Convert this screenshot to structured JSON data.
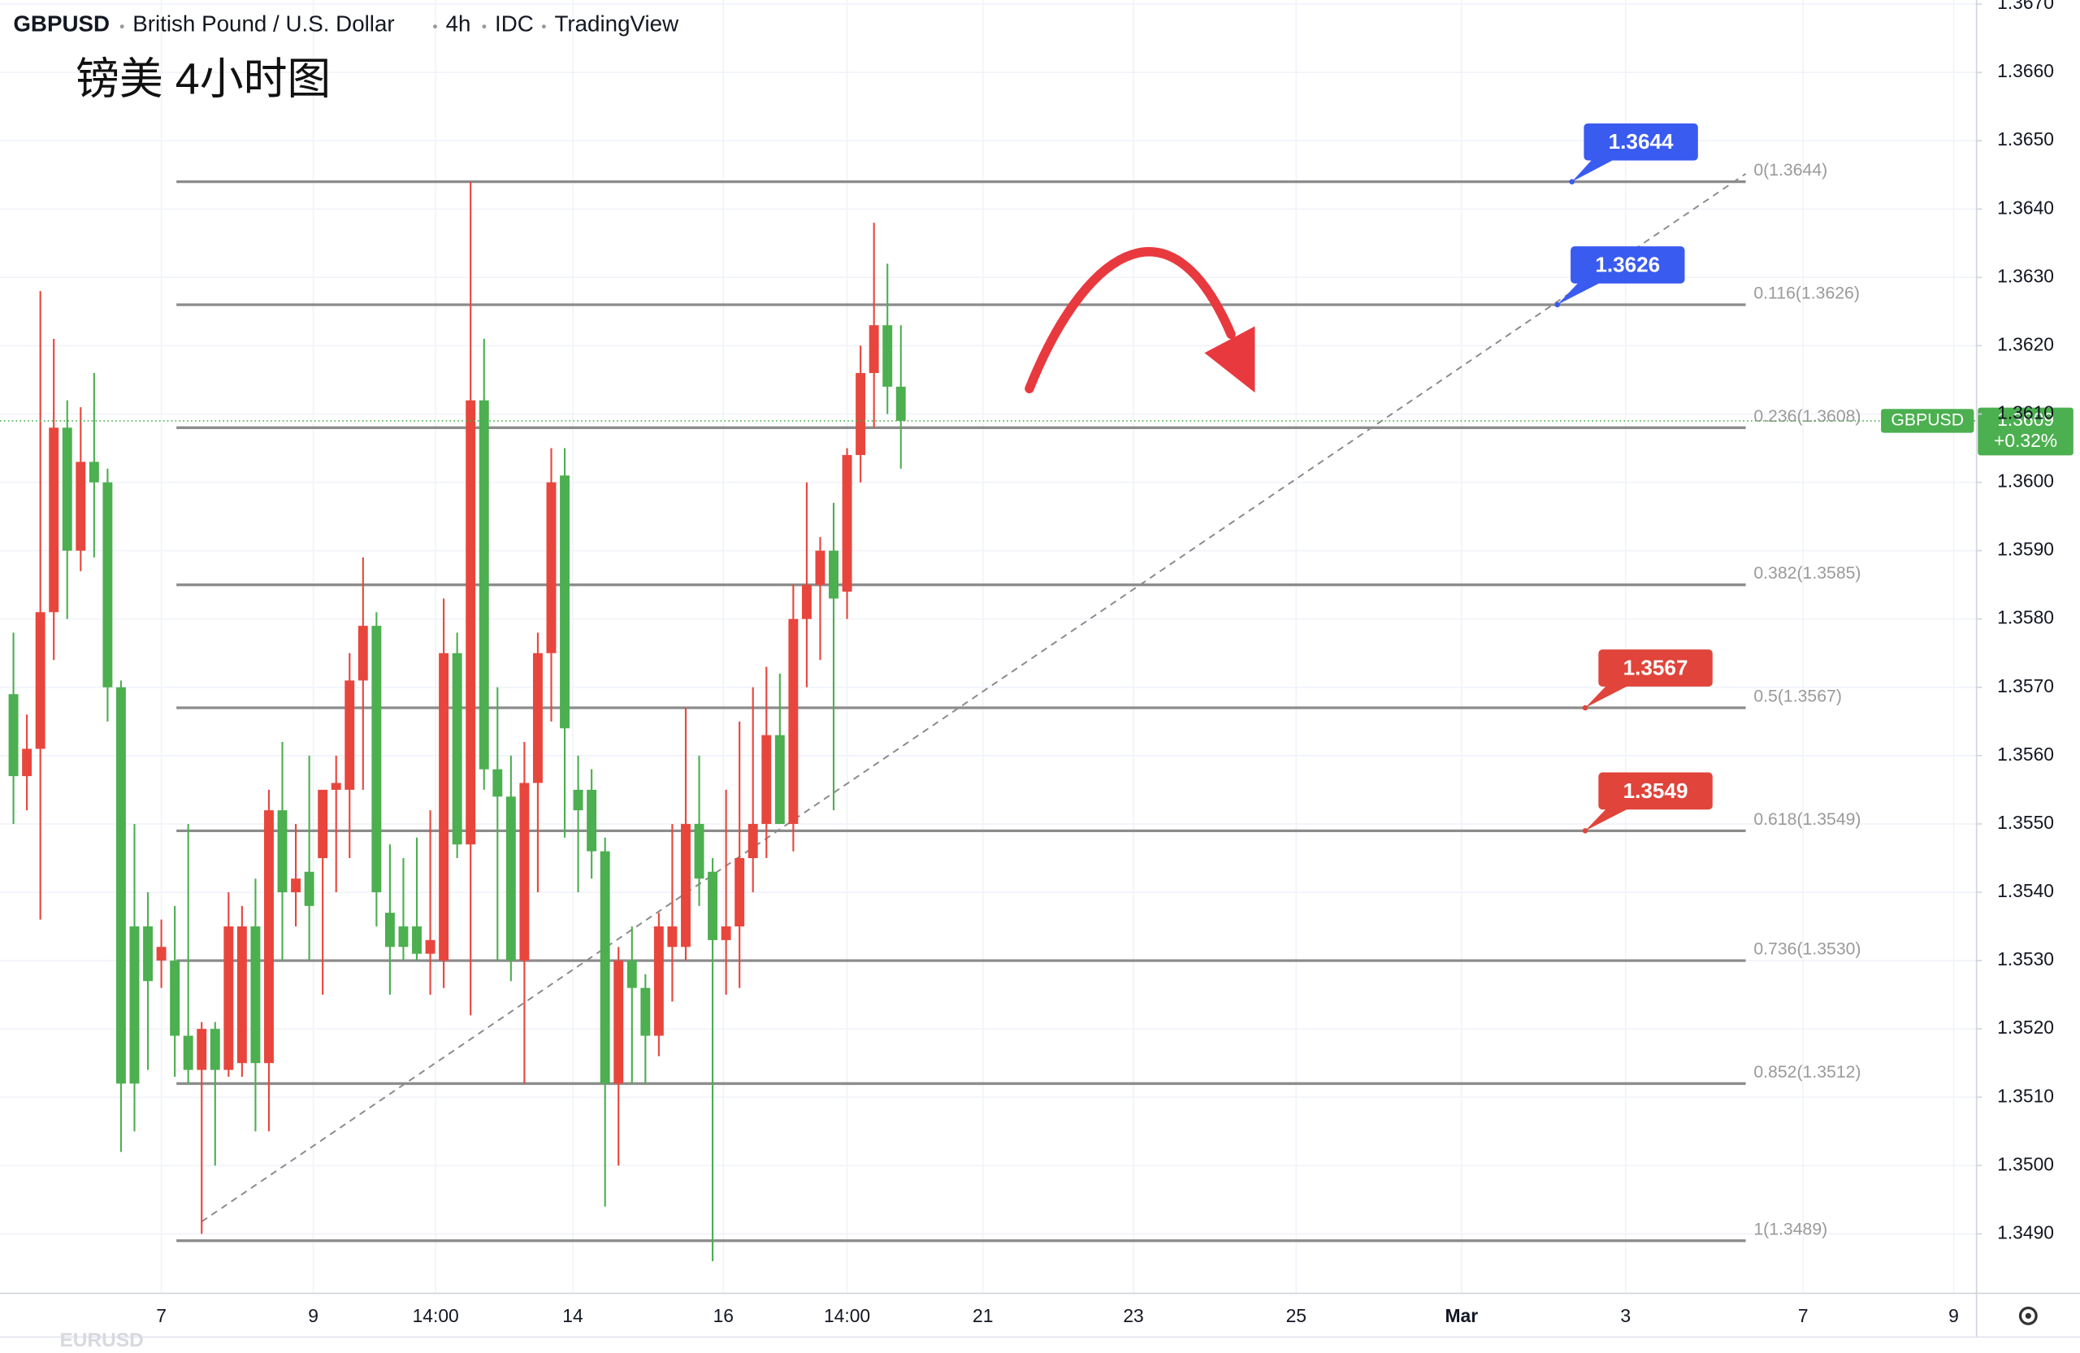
{
  "chart_data": {
    "type": "candlestick",
    "header": [
      "GBPUSD",
      "British Pound / U.S. Dollar",
      "4h",
      "IDC",
      "TradingView"
    ],
    "title": "镑美 4小时图",
    "watermark": "EURUSD",
    "series": [
      {
        "name": "GBPUSD",
        "up_color": "#e8463d",
        "down_color": "#4caf50",
        "values": [
          [
            1.3569,
            1.3578,
            1.355,
            1.3557
          ],
          [
            1.3557,
            1.3566,
            1.3552,
            1.3561
          ],
          [
            1.3561,
            1.3628,
            1.3536,
            1.3581
          ],
          [
            1.3581,
            1.3621,
            1.3574,
            1.3608
          ],
          [
            1.3608,
            1.3612,
            1.358,
            1.359
          ],
          [
            1.359,
            1.3611,
            1.3587,
            1.3603
          ],
          [
            1.3603,
            1.3616,
            1.3589,
            1.36
          ],
          [
            1.36,
            1.3602,
            1.3565,
            1.357
          ],
          [
            1.357,
            1.3571,
            1.3502,
            1.3512
          ],
          [
            1.3535,
            1.355,
            1.3505,
            1.3512
          ],
          [
            1.3535,
            1.354,
            1.3514,
            1.3527
          ],
          [
            1.353,
            1.3536,
            1.3526,
            1.3532
          ],
          [
            1.353,
            1.3538,
            1.3513,
            1.3519
          ],
          [
            1.3519,
            1.355,
            1.3512,
            1.3514
          ],
          [
            1.3514,
            1.3521,
            1.349,
            1.352
          ],
          [
            1.352,
            1.3521,
            1.35,
            1.3514
          ],
          [
            1.3514,
            1.354,
            1.3513,
            1.3535
          ],
          [
            1.3515,
            1.3538,
            1.3513,
            1.3535
          ],
          [
            1.3535,
            1.3542,
            1.3505,
            1.3515
          ],
          [
            1.3515,
            1.3555,
            1.3505,
            1.3552
          ],
          [
            1.3552,
            1.3562,
            1.353,
            1.354
          ],
          [
            1.354,
            1.355,
            1.3535,
            1.3542
          ],
          [
            1.3543,
            1.356,
            1.353,
            1.3538
          ],
          [
            1.3545,
            1.3555,
            1.3525,
            1.3555
          ],
          [
            1.3555,
            1.356,
            1.354,
            1.3556
          ],
          [
            1.3555,
            1.3575,
            1.3545,
            1.3571
          ],
          [
            1.3571,
            1.3589,
            1.3555,
            1.3579
          ],
          [
            1.3579,
            1.3581,
            1.3535,
            1.354
          ],
          [
            1.3537,
            1.3547,
            1.3525,
            1.3532
          ],
          [
            1.3535,
            1.3545,
            1.353,
            1.3532
          ],
          [
            1.3535,
            1.3548,
            1.353,
            1.3531
          ],
          [
            1.3531,
            1.3552,
            1.3525,
            1.3533
          ],
          [
            1.353,
            1.3583,
            1.3526,
            1.3575
          ],
          [
            1.3575,
            1.3578,
            1.3545,
            1.3547
          ],
          [
            1.3547,
            1.3644,
            1.3522,
            1.3612
          ],
          [
            1.3612,
            1.3621,
            1.3555,
            1.3558
          ],
          [
            1.3558,
            1.357,
            1.353,
            1.3554
          ],
          [
            1.3554,
            1.356,
            1.3527,
            1.353
          ],
          [
            1.353,
            1.3562,
            1.3512,
            1.3556
          ],
          [
            1.3556,
            1.3578,
            1.354,
            1.3575
          ],
          [
            1.3575,
            1.3605,
            1.3565,
            1.36
          ],
          [
            1.3601,
            1.3605,
            1.3548,
            1.3564
          ],
          [
            1.3555,
            1.356,
            1.354,
            1.3552
          ],
          [
            1.3555,
            1.3558,
            1.3542,
            1.3546
          ],
          [
            1.3546,
            1.3548,
            1.3494,
            1.3512
          ],
          [
            1.3512,
            1.3532,
            1.35,
            1.353
          ],
          [
            1.353,
            1.3535,
            1.3512,
            1.3526
          ],
          [
            1.3526,
            1.3528,
            1.3512,
            1.3519
          ],
          [
            1.3519,
            1.3537,
            1.3516,
            1.3535
          ],
          [
            1.3532,
            1.355,
            1.3524,
            1.3535
          ],
          [
            1.3532,
            1.3567,
            1.353,
            1.355
          ],
          [
            1.355,
            1.356,
            1.3538,
            1.3542
          ],
          [
            1.3543,
            1.3545,
            1.3486,
            1.3533
          ],
          [
            1.3533,
            1.3555,
            1.3525,
            1.3535
          ],
          [
            1.3535,
            1.3565,
            1.3526,
            1.3545
          ],
          [
            1.3545,
            1.357,
            1.354,
            1.355
          ],
          [
            1.355,
            1.3573,
            1.3545,
            1.3563
          ],
          [
            1.3563,
            1.3572,
            1.355,
            1.355
          ],
          [
            1.355,
            1.3585,
            1.3546,
            1.358
          ],
          [
            1.358,
            1.36,
            1.357,
            1.3585
          ],
          [
            1.3585,
            1.3592,
            1.3574,
            1.359
          ],
          [
            1.359,
            1.3597,
            1.3552,
            1.3583
          ],
          [
            1.3584,
            1.3605,
            1.358,
            1.3604
          ],
          [
            1.3604,
            1.362,
            1.36,
            1.3616
          ],
          [
            1.3616,
            1.3638,
            1.3608,
            1.3623
          ],
          [
            1.3623,
            1.3632,
            1.361,
            1.3614
          ],
          [
            1.3614,
            1.3623,
            1.3602,
            1.3609
          ]
        ]
      }
    ],
    "xlim": [
      -1,
      146
    ],
    "xticks": [
      {
        "value": 11,
        "label": "7"
      },
      {
        "value": 22.3,
        "label": "9"
      },
      {
        "value": 31.4,
        "label": "14:00"
      },
      {
        "value": 41.6,
        "label": "14"
      },
      {
        "value": 52.8,
        "label": "16"
      },
      {
        "value": 62,
        "label": "14:00"
      },
      {
        "value": 72.1,
        "label": "21"
      },
      {
        "value": 83.3,
        "label": "23"
      },
      {
        "value": 95.4,
        "label": "25"
      },
      {
        "value": 107.7,
        "label": "Mar"
      },
      {
        "value": 119.9,
        "label": "3"
      },
      {
        "value": 133.1,
        "label": "7"
      },
      {
        "value": 144.3,
        "label": "9"
      }
    ],
    "ylim": [
      1.34813,
      1.36706
    ],
    "yticks": [
      {
        "value": 1.349,
        "label": "1.3490"
      },
      {
        "value": 1.35,
        "label": "1.3500"
      },
      {
        "value": 1.351,
        "label": "1.3510"
      },
      {
        "value": 1.352,
        "label": "1.3520"
      },
      {
        "value": 1.353,
        "label": "1.3530"
      },
      {
        "value": 1.354,
        "label": "1.3540"
      },
      {
        "value": 1.355,
        "label": "1.3550"
      },
      {
        "value": 1.356,
        "label": "1.3560"
      },
      {
        "value": 1.357,
        "label": "1.3570"
      },
      {
        "value": 1.358,
        "label": "1.3580"
      },
      {
        "value": 1.359,
        "label": "1.3590"
      },
      {
        "value": 1.36,
        "label": "1.3600"
      },
      {
        "value": 1.361,
        "label": "1.3610"
      },
      {
        "value": 1.362,
        "label": "1.3620"
      },
      {
        "value": 1.363,
        "label": "1.3630"
      },
      {
        "value": 1.364,
        "label": "1.3640"
      },
      {
        "value": 1.365,
        "label": "1.3650"
      },
      {
        "value": 1.366,
        "label": "1.3660"
      },
      {
        "value": 1.367,
        "label": "1.3670"
      }
    ],
    "grid": true,
    "fib_levels": [
      {
        "value": 1.3644,
        "label": "0(1.3644)"
      },
      {
        "value": 1.3626,
        "label": "0.116(1.3626)"
      },
      {
        "value": 1.3608,
        "label": "0.236(1.3608)"
      },
      {
        "value": 1.3585,
        "label": "0.382(1.3585)"
      },
      {
        "value": 1.3567,
        "label": "0.5(1.3567)"
      },
      {
        "value": 1.3549,
        "label": "0.618(1.3549)"
      },
      {
        "value": 1.353,
        "label": "0.736(1.3530)"
      },
      {
        "value": 1.3512,
        "label": "0.852(1.3512)"
      },
      {
        "value": 1.3489,
        "label": "1(1.3489)"
      }
    ],
    "price_tags": [
      {
        "value": 1.3644,
        "label": "1.3644",
        "color": "#3a5bf0"
      },
      {
        "value": 1.3626,
        "label": "1.3626",
        "color": "#3a5bf0"
      },
      {
        "value": 1.3567,
        "label": "1.3567",
        "color": "#e0443a"
      },
      {
        "value": 1.3549,
        "label": "1.3549",
        "color": "#e0443a"
      }
    ],
    "last_price": {
      "value": 1.3609,
      "label": "1.3609",
      "change": "+0.32%",
      "symbol": "GBPUSD",
      "color": "#4caf50"
    }
  }
}
